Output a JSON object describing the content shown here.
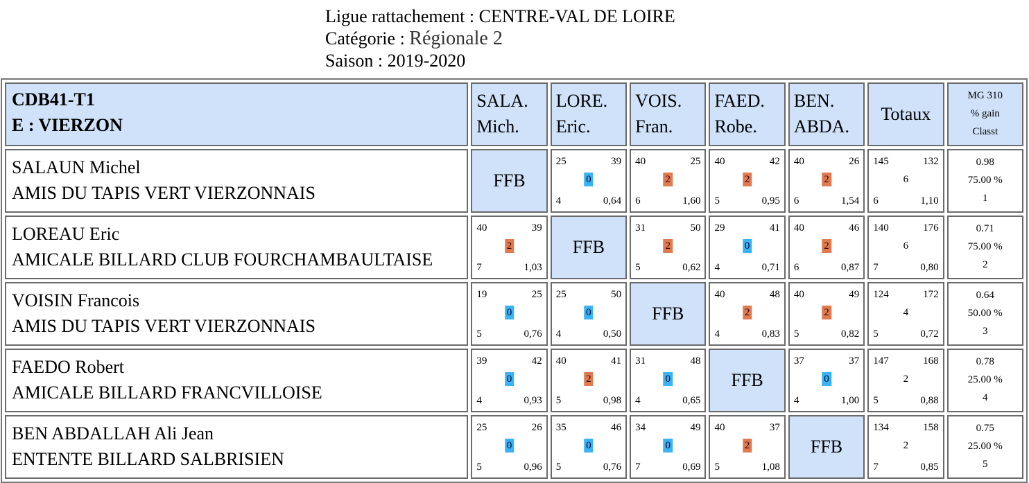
{
  "header": {
    "ligue_label": "Ligue rattachement : ",
    "ligue_value": "CENTRE-VAL DE LOIRE",
    "categorie_label": "Catégorie : ",
    "categorie_value": "Régionale 2",
    "saison_label": "Saison : ",
    "saison_value": "2019-2020"
  },
  "table": {
    "team_line1": "CDB41-T1",
    "team_line2": "E : VIERZON",
    "columns": [
      {
        "l1": "SALA.",
        "l2": "Mich."
      },
      {
        "l1": "LORE.",
        "l2": "Eric."
      },
      {
        "l1": "VOIS.",
        "l2": "Fran."
      },
      {
        "l1": "FAED.",
        "l2": "Robe."
      },
      {
        "l1": "BEN.",
        "l2": "ABDA."
      }
    ],
    "totaux_label": "Totaux",
    "mg_label1": "MG 310",
    "mg_label2": "% gain",
    "mg_label3": "Classt",
    "ffb_label": "FFB",
    "rows": [
      {
        "name": "SALAUN Michel",
        "club": "AMIS DU TAPIS VERT VIERZONNAIS",
        "cells": [
          null,
          {
            "tl": "25",
            "tr": "39",
            "mid": "0",
            "bl": "4",
            "br": "0,64"
          },
          {
            "tl": "40",
            "tr": "25",
            "mid": "2",
            "bl": "6",
            "br": "1,60"
          },
          {
            "tl": "40",
            "tr": "42",
            "mid": "2",
            "bl": "5",
            "br": "0,95"
          },
          {
            "tl": "40",
            "tr": "26",
            "mid": "2",
            "bl": "6",
            "br": "1,54"
          }
        ],
        "totals": {
          "tl": "145",
          "tr": "132",
          "mid": "6",
          "bl": "6",
          "br": "1,10"
        },
        "mg": "0.98",
        "gain": "75.00 %",
        "classt": "1"
      },
      {
        "name": "LOREAU Eric",
        "club": "AMICALE BILLARD CLUB FOURCHAMBAULTAISE",
        "cells": [
          {
            "tl": "40",
            "tr": "39",
            "mid": "2",
            "bl": "7",
            "br": "1,03"
          },
          null,
          {
            "tl": "31",
            "tr": "50",
            "mid": "2",
            "bl": "5",
            "br": "0,62"
          },
          {
            "tl": "29",
            "tr": "41",
            "mid": "0",
            "bl": "4",
            "br": "0,71"
          },
          {
            "tl": "40",
            "tr": "46",
            "mid": "2",
            "bl": "6",
            "br": "0,87"
          }
        ],
        "totals": {
          "tl": "140",
          "tr": "176",
          "mid": "6",
          "bl": "7",
          "br": "0,80"
        },
        "mg": "0.71",
        "gain": "75.00 %",
        "classt": "2"
      },
      {
        "name": "VOISIN Francois",
        "club": "AMIS DU TAPIS VERT VIERZONNAIS",
        "cells": [
          {
            "tl": "19",
            "tr": "25",
            "mid": "0",
            "bl": "5",
            "br": "0,76"
          },
          {
            "tl": "25",
            "tr": "50",
            "mid": "0",
            "bl": "4",
            "br": "0,50"
          },
          null,
          {
            "tl": "40",
            "tr": "48",
            "mid": "2",
            "bl": "4",
            "br": "0,83"
          },
          {
            "tl": "40",
            "tr": "49",
            "mid": "2",
            "bl": "5",
            "br": "0,82"
          }
        ],
        "totals": {
          "tl": "124",
          "tr": "172",
          "mid": "4",
          "bl": "5",
          "br": "0,72"
        },
        "mg": "0.64",
        "gain": "50.00 %",
        "classt": "3"
      },
      {
        "name": "FAEDO Robert",
        "club": "AMICALE BILLARD FRANCVILLOISE",
        "cells": [
          {
            "tl": "39",
            "tr": "42",
            "mid": "0",
            "bl": "4",
            "br": "0,93"
          },
          {
            "tl": "40",
            "tr": "41",
            "mid": "2",
            "bl": "5",
            "br": "0,98"
          },
          {
            "tl": "31",
            "tr": "48",
            "mid": "0",
            "bl": "4",
            "br": "0,65"
          },
          null,
          {
            "tl": "37",
            "tr": "37",
            "mid": "0",
            "bl": "4",
            "br": "1,00"
          }
        ],
        "totals": {
          "tl": "147",
          "tr": "168",
          "mid": "2",
          "bl": "5",
          "br": "0,88"
        },
        "mg": "0.78",
        "gain": "25.00 %",
        "classt": "4"
      },
      {
        "name": "BEN ABDALLAH Ali Jean",
        "club": "ENTENTE BILLARD SALBRISIEN",
        "cells": [
          {
            "tl": "25",
            "tr": "26",
            "mid": "0",
            "bl": "5",
            "br": "0,96"
          },
          {
            "tl": "35",
            "tr": "46",
            "mid": "0",
            "bl": "5",
            "br": "0,76"
          },
          {
            "tl": "34",
            "tr": "49",
            "mid": "0",
            "bl": "7",
            "br": "0,69"
          },
          {
            "tl": "40",
            "tr": "37",
            "mid": "2",
            "bl": "5",
            "br": "1,08"
          },
          null
        ],
        "totals": {
          "tl": "134",
          "tr": "158",
          "mid": "2",
          "bl": "7",
          "br": "0,85"
        },
        "mg": "0.75",
        "gain": "25.00 %",
        "classt": "5"
      }
    ]
  },
  "colors": {
    "header_bg": "#cfe2fa",
    "win_badge": "#e07a4f",
    "loss_badge": "#39b3f2"
  }
}
